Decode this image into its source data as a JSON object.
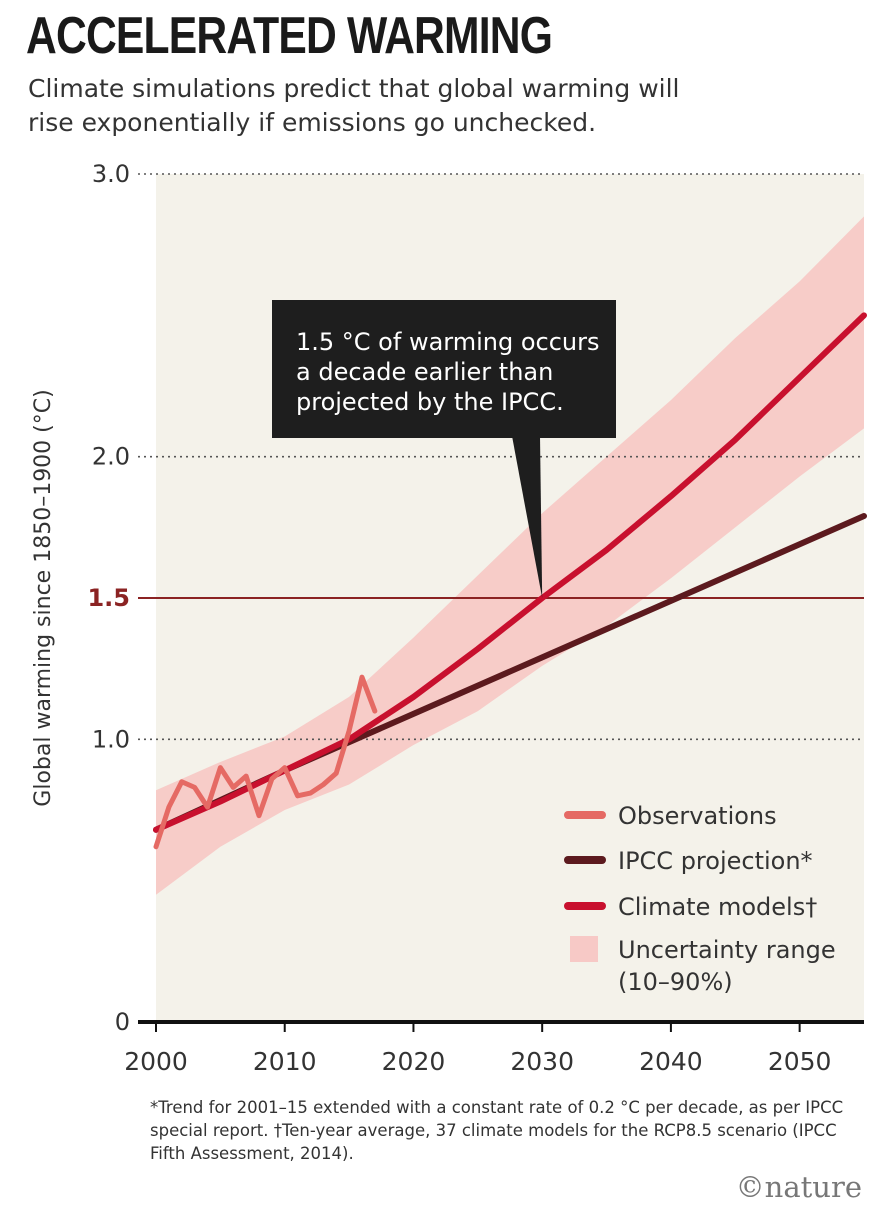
{
  "title": "ACCELERATED WARMING",
  "subtitle": "Climate simulations predict that global warming will rise exponentially if emissions go unchecked.",
  "footnote": "*Trend for 2001–15 extended with a constant rate of 0.2 °C per decade, as per IPCC special report. †Ten-year average, 37 climate models for the RCP8.5 scenario (IPCC Fifth Assessment, 2014).",
  "credit": "©nature",
  "colors": {
    "observations": "#e56a64",
    "ipcc": "#5c1a1e",
    "models": "#c8102e",
    "uncertainty": "#f7c9c6",
    "plot_bg": "#f4f2ea",
    "threshold": "#8b2323"
  },
  "chart_data": {
    "type": "line",
    "ylabel": "Global warming since 1850–1900 (°C)",
    "xlabel": "",
    "xlim": [
      2000,
      2055
    ],
    "ylim": [
      0,
      3.0
    ],
    "x_ticks": [
      "2000",
      "2010",
      "2020",
      "2030",
      "2040",
      "2050"
    ],
    "y_ticks": [
      {
        "value": 0,
        "label": "0"
      },
      {
        "value": 1.0,
        "label": "1.0"
      },
      {
        "value": 1.5,
        "label": "1.5"
      },
      {
        "value": 2.0,
        "label": "2.0"
      },
      {
        "value": 3.0,
        "label": "3.0"
      }
    ],
    "threshold": {
      "value": 1.5,
      "label": "1.5"
    },
    "annotation": {
      "text_lines": [
        "1.5 °C of warming occurs",
        "a decade earlier than",
        "projected by the IPCC."
      ],
      "point": [
        2030,
        1.5
      ]
    },
    "series": [
      {
        "name": "Observations",
        "key": "observations",
        "x": [
          2000,
          2001,
          2002,
          2003,
          2004,
          2005,
          2006,
          2007,
          2008,
          2009,
          2010,
          2011,
          2012,
          2013,
          2014,
          2015,
          2016,
          2017
        ],
        "values": [
          0.62,
          0.76,
          0.85,
          0.83,
          0.76,
          0.9,
          0.83,
          0.87,
          0.73,
          0.86,
          0.9,
          0.8,
          0.81,
          0.84,
          0.88,
          1.03,
          1.22,
          1.1
        ]
      },
      {
        "name": "IPCC projection*",
        "key": "ipcc",
        "x": [
          2000,
          2010,
          2020,
          2030,
          2040,
          2050,
          2055
        ],
        "values": [
          0.68,
          0.89,
          1.09,
          1.29,
          1.49,
          1.69,
          1.79
        ]
      },
      {
        "name": "Climate models†",
        "key": "models",
        "x": [
          2000,
          2005,
          2010,
          2015,
          2020,
          2025,
          2030,
          2035,
          2040,
          2045,
          2050,
          2055
        ],
        "values": [
          0.68,
          0.78,
          0.89,
          1.0,
          1.15,
          1.32,
          1.5,
          1.67,
          1.86,
          2.06,
          2.28,
          2.5
        ]
      }
    ],
    "uncertainty_range": {
      "name": "Uncertainty range (10–90%)",
      "x": [
        2000,
        2005,
        2010,
        2015,
        2020,
        2025,
        2030,
        2035,
        2040,
        2045,
        2050,
        2055
      ],
      "upper": [
        0.82,
        0.92,
        1.01,
        1.15,
        1.36,
        1.58,
        1.8,
        2.0,
        2.2,
        2.42,
        2.62,
        2.85
      ],
      "lower": [
        0.45,
        0.62,
        0.75,
        0.84,
        0.98,
        1.1,
        1.26,
        1.4,
        1.57,
        1.75,
        1.93,
        2.1
      ]
    }
  }
}
